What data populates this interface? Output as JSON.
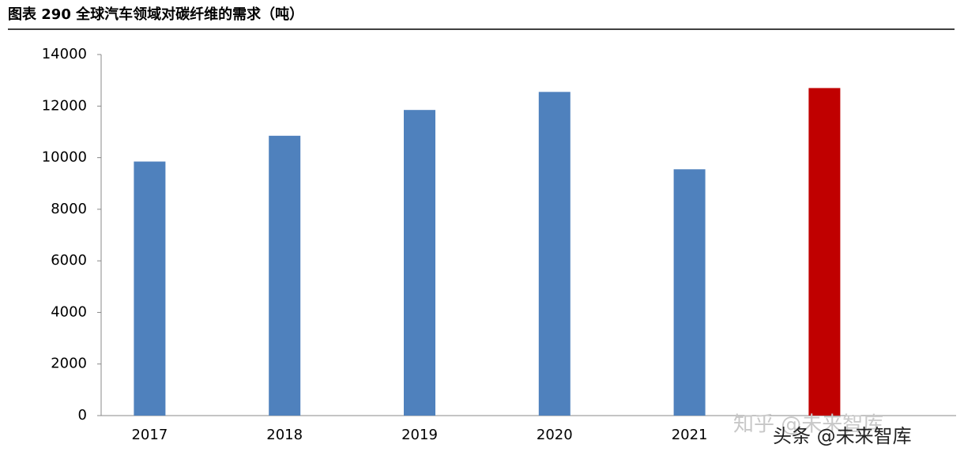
{
  "chart_data": {
    "type": "bar",
    "title": "图表 290 全球汽车领域对碳纤维的需求（吨）",
    "categories": [
      "2017",
      "2018",
      "2019",
      "2020",
      "2021",
      null
    ],
    "values": [
      9850,
      10850,
      11850,
      12550,
      9550,
      12700
    ],
    "colors": [
      "#4f81bd",
      "#4f81bd",
      "#4f81bd",
      "#4f81bd",
      "#4f81bd",
      "#c00000"
    ],
    "ylim": [
      0,
      14000
    ],
    "yticks": [
      0,
      2000,
      4000,
      6000,
      8000,
      10000,
      12000,
      14000
    ],
    "grid": false,
    "watermarks": [
      "知乎 @未来智库",
      "头条 @未来智库"
    ]
  }
}
